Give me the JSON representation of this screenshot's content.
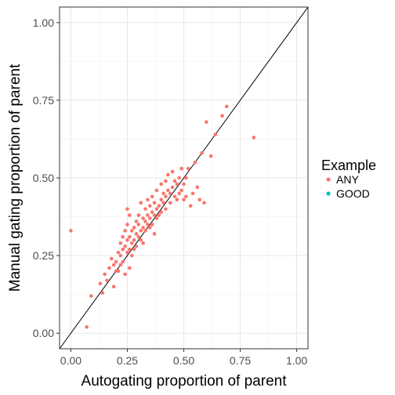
{
  "chart_data": {
    "type": "scatter",
    "title": "",
    "xlabel": "Autogating proportion of parent",
    "ylabel": "Manual gating proportion of parent",
    "xlim": [
      -0.05,
      1.05
    ],
    "ylim": [
      -0.05,
      1.05
    ],
    "x_ticks": [
      "0.00",
      "0.25",
      "0.50",
      "0.75",
      "1.00"
    ],
    "y_ticks": [
      "0.00",
      "0.25",
      "0.50",
      "0.75",
      "1.00"
    ],
    "grid": true,
    "reference_line": "y = x",
    "legend": {
      "title": "Example",
      "position": "right",
      "entries": [
        {
          "label": "ANY",
          "color": "#F8766D"
        },
        {
          "label": "GOOD",
          "color": "#00BFC4"
        }
      ]
    },
    "series": [
      {
        "name": "ANY",
        "color": "#F8766D",
        "points": [
          [
            0.0,
            0.33
          ],
          [
            0.07,
            0.02
          ],
          [
            0.09,
            0.12
          ],
          [
            0.13,
            0.16
          ],
          [
            0.14,
            0.13
          ],
          [
            0.15,
            0.19
          ],
          [
            0.16,
            0.17
          ],
          [
            0.17,
            0.21
          ],
          [
            0.18,
            0.24
          ],
          [
            0.19,
            0.22
          ],
          [
            0.19,
            0.15
          ],
          [
            0.2,
            0.2
          ],
          [
            0.2,
            0.23
          ],
          [
            0.21,
            0.2
          ],
          [
            0.21,
            0.26
          ],
          [
            0.22,
            0.22
          ],
          [
            0.22,
            0.25
          ],
          [
            0.22,
            0.29
          ],
          [
            0.23,
            0.27
          ],
          [
            0.23,
            0.31
          ],
          [
            0.23,
            0.23
          ],
          [
            0.24,
            0.28
          ],
          [
            0.24,
            0.33
          ],
          [
            0.24,
            0.19
          ],
          [
            0.25,
            0.26
          ],
          [
            0.25,
            0.3
          ],
          [
            0.25,
            0.35
          ],
          [
            0.25,
            0.4
          ],
          [
            0.26,
            0.27
          ],
          [
            0.26,
            0.31
          ],
          [
            0.26,
            0.38
          ],
          [
            0.26,
            0.21
          ],
          [
            0.27,
            0.29
          ],
          [
            0.27,
            0.33
          ],
          [
            0.27,
            0.25
          ],
          [
            0.28,
            0.3
          ],
          [
            0.28,
            0.34
          ],
          [
            0.28,
            0.27
          ],
          [
            0.29,
            0.32
          ],
          [
            0.29,
            0.36
          ],
          [
            0.29,
            0.28
          ],
          [
            0.3,
            0.31
          ],
          [
            0.3,
            0.35
          ],
          [
            0.3,
            0.38
          ],
          [
            0.31,
            0.33
          ],
          [
            0.31,
            0.3
          ],
          [
            0.31,
            0.42
          ],
          [
            0.32,
            0.34
          ],
          [
            0.32,
            0.37
          ],
          [
            0.32,
            0.29
          ],
          [
            0.33,
            0.36
          ],
          [
            0.33,
            0.33
          ],
          [
            0.33,
            0.4
          ],
          [
            0.34,
            0.35
          ],
          [
            0.34,
            0.38
          ],
          [
            0.34,
            0.43
          ],
          [
            0.35,
            0.37
          ],
          [
            0.35,
            0.34
          ],
          [
            0.35,
            0.41
          ],
          [
            0.36,
            0.39
          ],
          [
            0.36,
            0.35
          ],
          [
            0.36,
            0.44
          ],
          [
            0.37,
            0.38
          ],
          [
            0.37,
            0.42
          ],
          [
            0.37,
            0.32
          ],
          [
            0.38,
            0.4
          ],
          [
            0.38,
            0.37
          ],
          [
            0.38,
            0.46
          ],
          [
            0.39,
            0.41
          ],
          [
            0.39,
            0.38
          ],
          [
            0.4,
            0.43
          ],
          [
            0.4,
            0.39
          ],
          [
            0.4,
            0.48
          ],
          [
            0.41,
            0.42
          ],
          [
            0.41,
            0.45
          ],
          [
            0.42,
            0.44
          ],
          [
            0.42,
            0.4
          ],
          [
            0.42,
            0.49
          ],
          [
            0.43,
            0.46
          ],
          [
            0.43,
            0.51
          ],
          [
            0.44,
            0.45
          ],
          [
            0.44,
            0.42
          ],
          [
            0.45,
            0.47
          ],
          [
            0.45,
            0.52
          ],
          [
            0.46,
            0.44
          ],
          [
            0.46,
            0.49
          ],
          [
            0.47,
            0.43
          ],
          [
            0.47,
            0.48
          ],
          [
            0.48,
            0.5
          ],
          [
            0.48,
            0.45
          ],
          [
            0.49,
            0.46
          ],
          [
            0.49,
            0.53
          ],
          [
            0.5,
            0.48
          ],
          [
            0.5,
            0.43
          ],
          [
            0.51,
            0.44
          ],
          [
            0.51,
            0.5
          ],
          [
            0.52,
            0.53
          ],
          [
            0.53,
            0.41
          ],
          [
            0.54,
            0.45
          ],
          [
            0.55,
            0.55
          ],
          [
            0.56,
            0.47
          ],
          [
            0.57,
            0.43
          ],
          [
            0.58,
            0.58
          ],
          [
            0.59,
            0.42
          ],
          [
            0.6,
            0.68
          ],
          [
            0.62,
            0.57
          ],
          [
            0.64,
            0.64
          ],
          [
            0.67,
            0.7
          ],
          [
            0.69,
            0.73
          ],
          [
            0.81,
            0.63
          ]
        ]
      },
      {
        "name": "GOOD",
        "color": "#00BFC4",
        "points": []
      }
    ]
  }
}
